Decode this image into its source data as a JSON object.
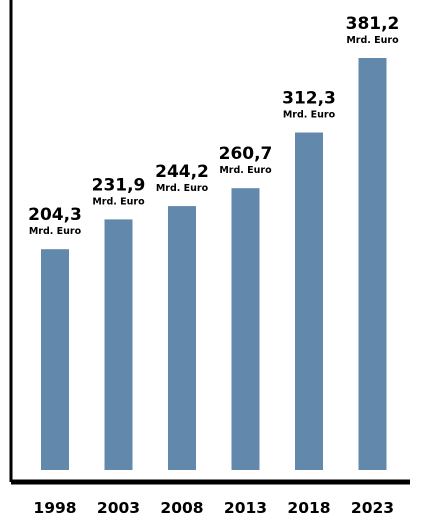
{
  "chart_data": {
    "type": "bar",
    "categories": [
      "1998",
      "2003",
      "2008",
      "2013",
      "2018",
      "2023"
    ],
    "values": [
      204.3,
      231.9,
      244.2,
      260.7,
      312.3,
      381.2
    ],
    "value_labels": [
      "204,3",
      "231,9",
      "244,2",
      "260,7",
      "312,3",
      "381,2"
    ],
    "unit_label": "Mrd. Euro",
    "title": "",
    "xlabel": "",
    "ylabel": "",
    "grid": false,
    "legend": "none",
    "colors": {
      "bar": "#6288ab",
      "axis": "#000000",
      "text": "#000000"
    }
  }
}
